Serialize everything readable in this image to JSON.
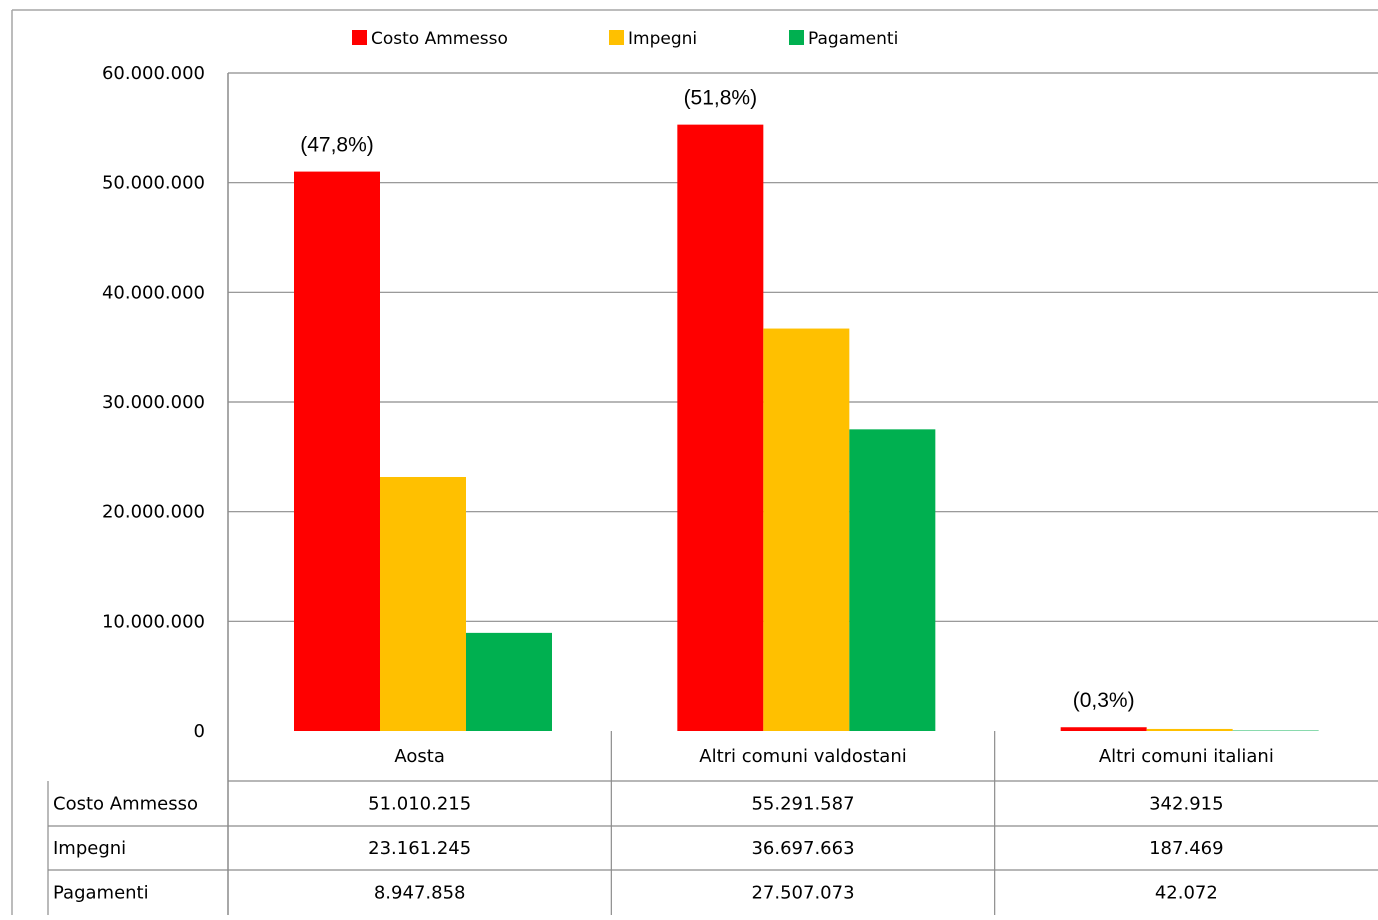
{
  "chart_data": {
    "type": "bar",
    "categories": [
      "Aosta",
      "Altri comuni valdostani",
      "Altri comuni italiani"
    ],
    "series": [
      {
        "name": "Costo Ammesso",
        "color": "#ff0000",
        "values": [
          51010215,
          55291587,
          342915
        ]
      },
      {
        "name": "Impegni",
        "color": "#ffc000",
        "values": [
          23161245,
          36697663,
          187469
        ]
      },
      {
        "name": "Pagamenti",
        "color": "#00b050",
        "values": [
          8947858,
          27507073,
          42072
        ]
      }
    ],
    "ylim": [
      0,
      60000000
    ],
    "yticks": [
      "0",
      "10.000.000",
      "20.000.000",
      "30.000.000",
      "40.000.000",
      "50.000.000",
      "60.000.000"
    ],
    "grid": true,
    "legend_position": "top",
    "share_labels": [
      "(47,8%)",
      "(51,8%)",
      "(0,3%)"
    ],
    "table": {
      "rows": [
        {
          "label": "Costo Ammesso",
          "cells": [
            "51.010.215",
            "55.291.587",
            "342.915"
          ]
        },
        {
          "label": "Impegni",
          "cells": [
            "23.161.245",
            "36.697.663",
            "187.469"
          ]
        },
        {
          "label": "Pagamenti",
          "cells": [
            "8.947.858",
            "27.507.073",
            "42.072"
          ]
        }
      ]
    }
  }
}
